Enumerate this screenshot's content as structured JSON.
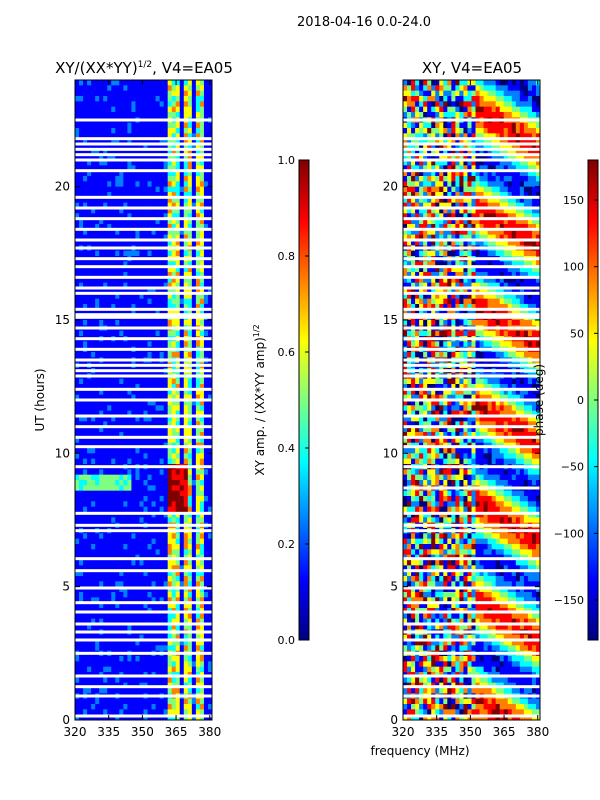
{
  "figure": {
    "suptitle": "2018-04-16 0.0-24.0",
    "xlabel": "frequency (MHz)"
  },
  "colormap": [
    "#00007f",
    "#0000ff",
    "#007fff",
    "#00ffff",
    "#7fff7f",
    "#ffff00",
    "#ff7f00",
    "#ff0000",
    "#7f0000"
  ],
  "chart_data": [
    {
      "type": "heatmap",
      "title_prefix": "XY/(XX*YY)",
      "title_exp": "1/2",
      "title_suffix": ", V4=EA05",
      "ylabel": "UT (hours)",
      "xlim": [
        320,
        381
      ],
      "ylim": [
        0,
        24
      ],
      "xticks": [
        320,
        335,
        350,
        365,
        380
      ],
      "yticks": [
        0,
        5,
        10,
        15,
        20
      ],
      "colorbar": {
        "label_main": "XY amp. / (XX*YY amp)",
        "label_exp": "1/2",
        "range": [
          0.0,
          1.0
        ],
        "ticks": [
          "0.0",
          "0.2",
          "0.4",
          "0.6",
          "0.8",
          "1.0"
        ]
      },
      "data_gaps_ut": [
        0.15,
        0.9,
        1.25,
        1.65,
        2.5,
        3.0,
        3.3,
        3.6,
        4.05,
        4.4,
        4.95,
        5.6,
        6.05,
        7.1,
        7.3,
        7.75,
        9.5,
        10.25,
        10.6,
        11.0,
        11.4,
        12.0,
        12.4,
        12.9,
        13.1,
        13.3,
        13.5,
        13.9,
        14.3,
        14.7,
        15.1,
        15.2,
        15.4,
        16.0,
        16.2,
        16.6,
        17.0,
        17.3,
        17.7,
        18.0,
        18.4,
        18.8,
        19.2,
        19.6,
        20.6,
        21.0,
        21.2,
        21.4,
        21.6,
        21.8,
        22.5
      ]
    },
    {
      "type": "heatmap",
      "title_prefix": "XY, V4=EA05",
      "title_exp": "",
      "title_suffix": "",
      "ylabel": "",
      "xlim": [
        320,
        381
      ],
      "ylim": [
        0,
        24
      ],
      "xticks": [
        320,
        335,
        350,
        365,
        380
      ],
      "yticks": [
        0,
        5,
        10,
        15,
        20
      ],
      "colorbar": {
        "label_main": "phase (deg)",
        "label_exp": "",
        "range": [
          -180,
          180
        ],
        "ticks": [
          "−150",
          "−100",
          "−50",
          "0",
          "50",
          "100",
          "150"
        ]
      },
      "data_gaps_ut": [
        0.15,
        0.9,
        1.25,
        1.65,
        2.5,
        3.0,
        3.3,
        3.6,
        4.05,
        4.4,
        4.95,
        5.6,
        6.05,
        7.1,
        7.3,
        7.75,
        8.7,
        9.5,
        10.25,
        10.6,
        11.0,
        11.4,
        12.0,
        12.4,
        12.9,
        13.1,
        13.3,
        13.5,
        13.9,
        14.3,
        14.7,
        15.1,
        15.2,
        15.4,
        16.0,
        16.2,
        16.6,
        17.0,
        17.3,
        17.7,
        18.0,
        18.4,
        18.8,
        19.2,
        19.6,
        20.6,
        21.0,
        21.2,
        21.4,
        21.6,
        21.8,
        22.5
      ]
    }
  ]
}
